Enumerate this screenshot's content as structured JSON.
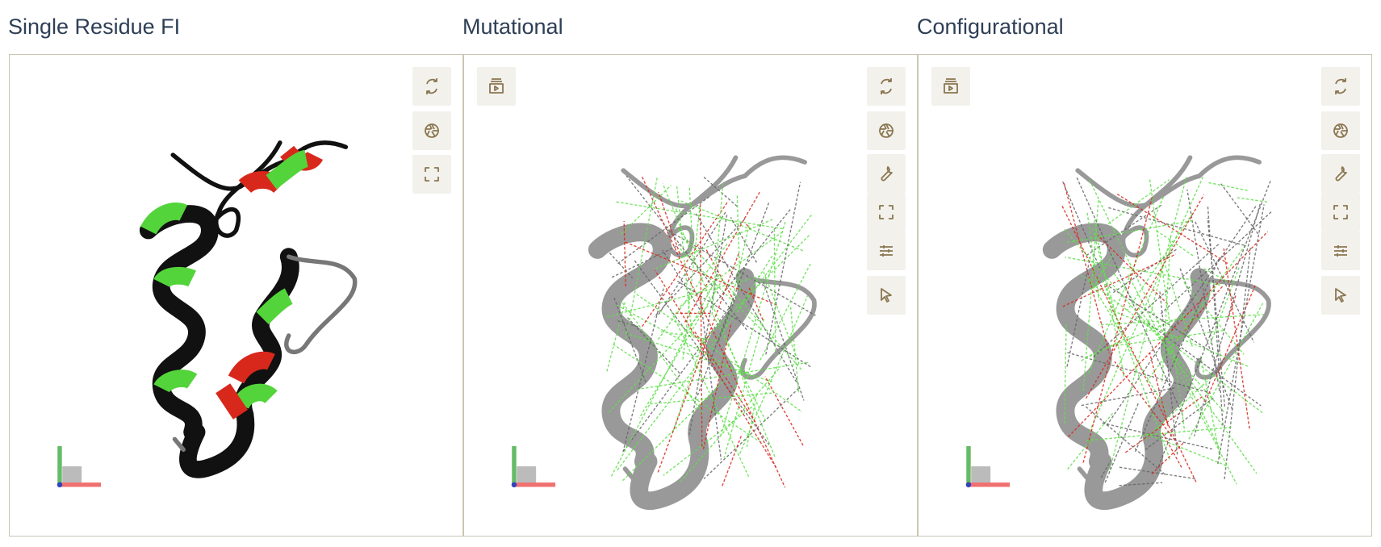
{
  "panels": [
    {
      "title": "Single Residue FI"
    },
    {
      "title": "Mutational"
    },
    {
      "title": "Configurational"
    }
  ]
}
